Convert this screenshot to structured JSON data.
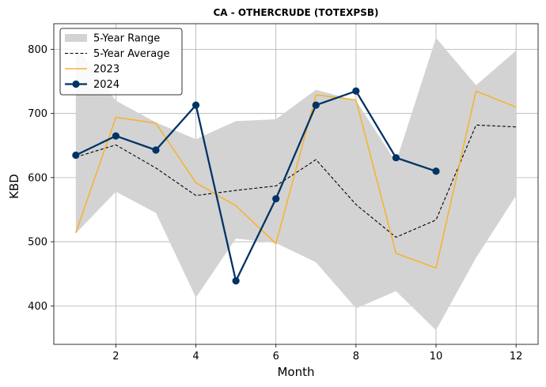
{
  "chart_data": {
    "type": "line",
    "title": "CA - OTHERCRUDE (TOTEXPSB)",
    "xlabel": "Month",
    "ylabel": "KBD",
    "x": [
      1,
      2,
      3,
      4,
      5,
      6,
      7,
      8,
      9,
      10,
      11,
      12
    ],
    "xlim": [
      0.45,
      12.55
    ],
    "ylim": [
      340,
      840
    ],
    "xticks": [
      2,
      4,
      6,
      8,
      10,
      12
    ],
    "yticks": [
      400,
      500,
      600,
      700,
      800
    ],
    "grid": true,
    "legend_position": "top-left",
    "range": {
      "name": "5-Year Range",
      "color": "#d3d3d3",
      "lower": [
        513,
        578,
        545,
        413,
        505,
        498,
        468,
        396,
        423,
        362,
        475,
        572
      ],
      "upper": [
        805,
        720,
        686,
        660,
        688,
        691,
        737,
        720,
        624,
        818,
        744,
        798
      ]
    },
    "series": [
      {
        "name": "5-Year Average",
        "color": "#000000",
        "style": "dashed",
        "values": [
          632,
          651,
          615,
          572,
          580,
          587,
          628,
          558,
          507,
          534,
          682,
          679
        ]
      },
      {
        "name": "2023",
        "color": "#f5b335",
        "style": "solid",
        "values": [
          514,
          694,
          685,
          592,
          556,
          497,
          729,
          721,
          482,
          459,
          735,
          710
        ]
      },
      {
        "name": "2024",
        "color": "#003366",
        "style": "solid-markers",
        "values": [
          635,
          665,
          643,
          713,
          439,
          567,
          713,
          735,
          631,
          610,
          null,
          null
        ]
      }
    ]
  }
}
